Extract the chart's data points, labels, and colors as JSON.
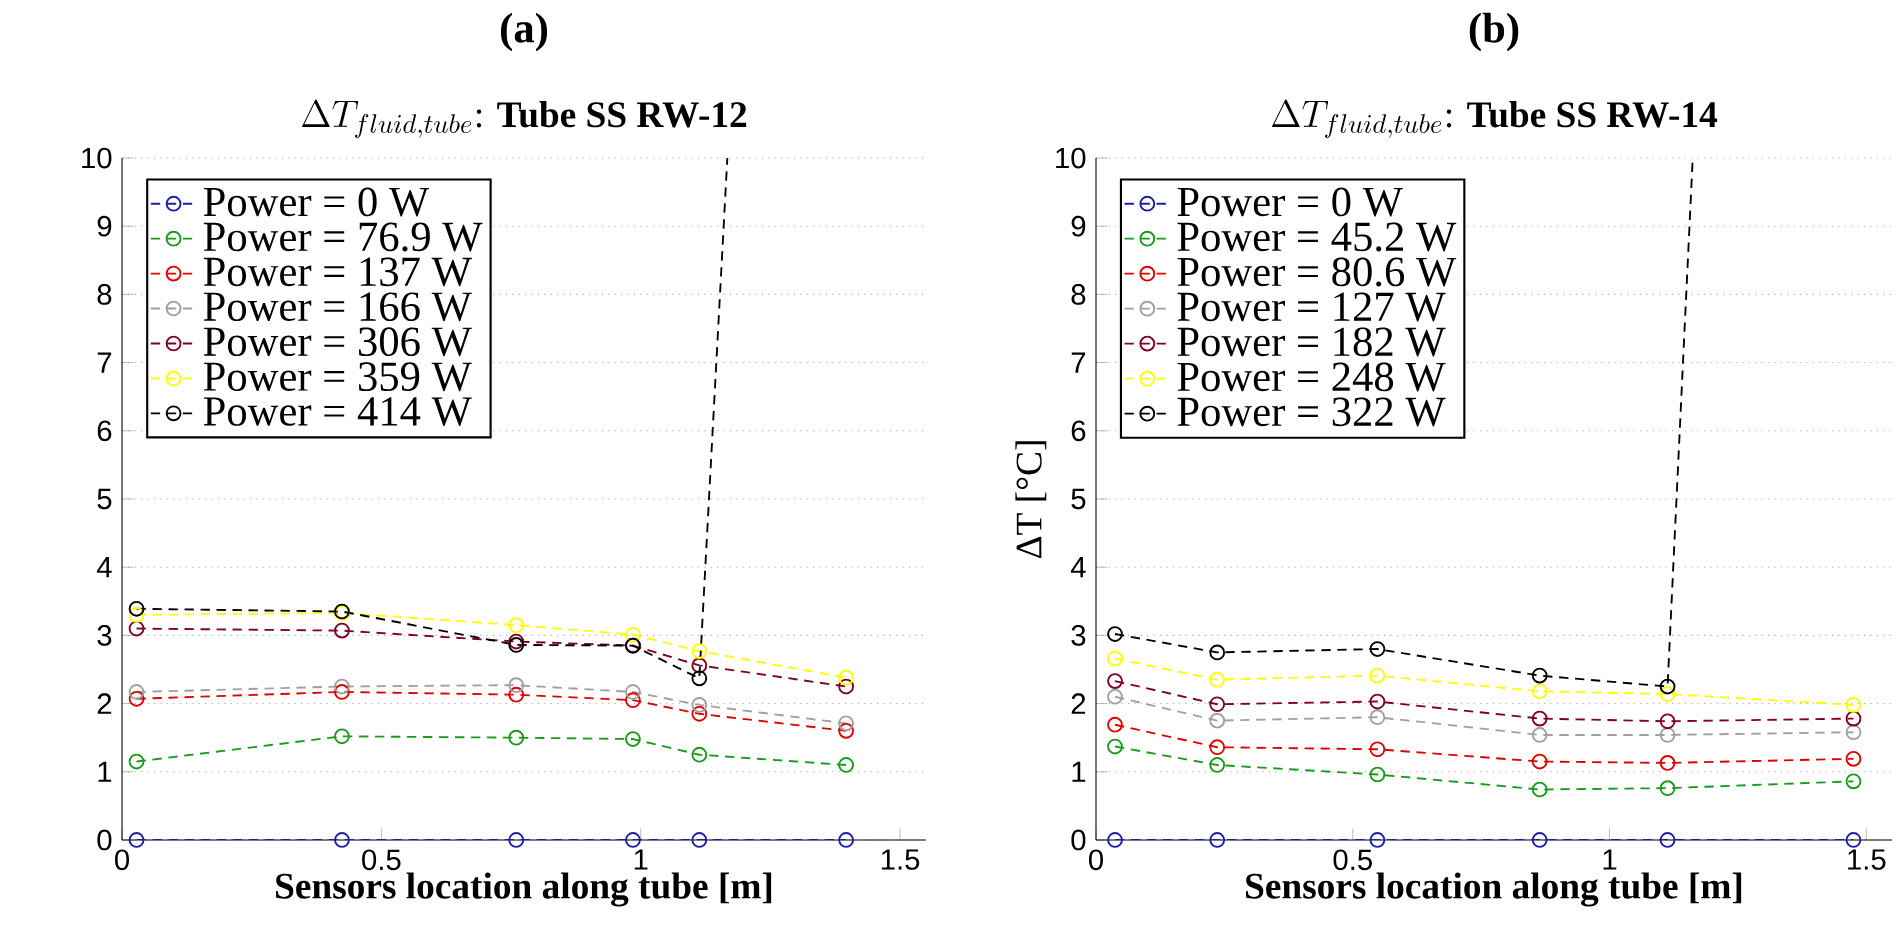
{
  "chart_data": [
    {
      "type": "line",
      "annotations": [
        "(a)"
      ],
      "title": "\\Delta T_{fluid,tube}\\mbox{: \\bfseries Tube SS RW-12}",
      "xlabel": "Sensors location along tube [m]",
      "x": [
        0.028,
        0.424,
        0.76,
        0.985,
        1.113,
        1.396
      ],
      "series": [
        {
          "name": "Power = 0 W",
          "color": "#1c1caa",
          "values": [
            0,
            0,
            0,
            0,
            0,
            0
          ]
        },
        {
          "name": "Power = 76.9 W",
          "color": "#1a9a1a",
          "values": [
            1.15,
            1.52,
            1.5,
            1.48,
            1.25,
            1.1
          ]
        },
        {
          "name": "Power = 137 W",
          "color": "#e00000",
          "values": [
            2.07,
            2.17,
            2.13,
            2.05,
            1.85,
            1.6
          ]
        },
        {
          "name": "Power = 166 W",
          "color": "#a0a0a0",
          "values": [
            2.17,
            2.25,
            2.27,
            2.17,
            1.98,
            1.71
          ]
        },
        {
          "name": "Power = 306 W",
          "color": "#800020",
          "values": [
            3.1,
            3.07,
            2.91,
            2.85,
            2.56,
            2.25
          ]
        },
        {
          "name": "Power = 359 W",
          "color": "#ffff00",
          "values": [
            3.3,
            3.33,
            3.15,
            3.01,
            2.77,
            2.38
          ]
        },
        {
          "name": "Power = 414 W",
          "color": "#000000",
          "x": [
            0.028,
            0.424,
            0.76,
            0.985,
            1.113,
            1.167
          ],
          "values": [
            3.39,
            3.35,
            2.86,
            2.85,
            2.37,
            10
          ]
        }
      ],
      "xlim": [
        0,
        1.55
      ],
      "ylim": [
        0,
        10
      ],
      "xticks": [
        0,
        0.5,
        1,
        1.5
      ],
      "yticks": [
        0,
        1,
        2,
        3,
        4,
        5,
        6,
        7,
        8,
        9,
        10
      ],
      "grid": "y",
      "legend": "top left",
      "marker": "circle",
      "line_style": "dashed"
    },
    {
      "type": "line",
      "annotations": [
        "(b)"
      ],
      "title": "\\Delta T_{fluid,tube}\\mbox{: \\bfseries Tube SS RW-14}",
      "xlabel": "Sensors location along tube [m]",
      "ylabel": "ΔT [°C]",
      "x": [
        0.037,
        0.236,
        0.548,
        0.864,
        1.113,
        1.475
      ],
      "series": [
        {
          "name": "Power = 0 W",
          "color": "#1c1caa",
          "values": [
            0,
            0,
            0,
            0,
            0,
            0
          ]
        },
        {
          "name": "Power = 45.2 W",
          "color": "#1a9a1a",
          "values": [
            1.37,
            1.1,
            0.96,
            0.74,
            0.76,
            0.86
          ]
        },
        {
          "name": "Power = 80.6 W",
          "color": "#e00000",
          "values": [
            1.69,
            1.36,
            1.33,
            1.15,
            1.13,
            1.19
          ]
        },
        {
          "name": "Power = 127 W",
          "color": "#a0a0a0",
          "values": [
            2.1,
            1.75,
            1.8,
            1.54,
            1.54,
            1.58
          ]
        },
        {
          "name": "Power = 182 W",
          "color": "#800020",
          "values": [
            2.33,
            1.99,
            2.03,
            1.78,
            1.74,
            1.78
          ]
        },
        {
          "name": "Power = 248 W",
          "color": "#ffff00",
          "values": [
            2.66,
            2.35,
            2.41,
            2.18,
            2.14,
            1.98
          ]
        },
        {
          "name": "Power = 322 W",
          "color": "#000000",
          "x": [
            0.037,
            0.236,
            0.548,
            0.864,
            1.113,
            1.162
          ],
          "values": [
            3.02,
            2.75,
            2.8,
            2.41,
            2.25,
            10
          ]
        }
      ],
      "xlim": [
        0,
        1.55
      ],
      "ylim": [
        0,
        10
      ],
      "xticks": [
        0,
        0.5,
        1,
        1.5
      ],
      "yticks": [
        0,
        1,
        2,
        3,
        4,
        5,
        6,
        7,
        8,
        9,
        10
      ],
      "grid": "y",
      "legend": "top left",
      "marker": "circle",
      "line_style": "dashed"
    }
  ]
}
